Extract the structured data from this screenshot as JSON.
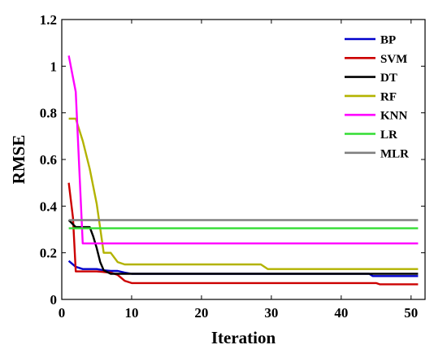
{
  "chart_data": {
    "type": "line",
    "title": "",
    "xlabel": "Iteration",
    "ylabel": "RMSE",
    "xlim": [
      0,
      52
    ],
    "ylim": [
      0,
      1.2
    ],
    "xticks": [
      "0",
      "10",
      "20",
      "30",
      "40",
      "50"
    ],
    "yticks": [
      "0",
      "0.2",
      "0.4",
      "0.6",
      "0.8",
      "1",
      "1.2"
    ],
    "grid": false,
    "legend_position": "top-right",
    "series": [
      {
        "name": "BP",
        "color": "#0000cc",
        "points": [
          [
            1,
            0.165
          ],
          [
            2,
            0.14
          ],
          [
            3,
            0.13
          ],
          [
            4,
            0.13
          ],
          [
            5,
            0.13
          ],
          [
            6,
            0.125
          ],
          [
            7,
            0.122
          ],
          [
            8,
            0.122
          ],
          [
            9,
            0.115
          ],
          [
            10,
            0.11
          ],
          [
            20,
            0.11
          ],
          [
            30,
            0.11
          ],
          [
            44,
            0.11
          ],
          [
            44.5,
            0.1
          ],
          [
            51,
            0.1
          ]
        ]
      },
      {
        "name": "SVM",
        "color": "#cc0000",
        "points": [
          [
            1,
            0.5
          ],
          [
            1.6,
            0.35
          ],
          [
            2,
            0.12
          ],
          [
            3,
            0.12
          ],
          [
            5,
            0.12
          ],
          [
            7,
            0.115
          ],
          [
            8,
            0.105
          ],
          [
            9,
            0.08
          ],
          [
            10,
            0.07
          ],
          [
            20,
            0.07
          ],
          [
            30,
            0.07
          ],
          [
            45,
            0.07
          ],
          [
            45.5,
            0.065
          ],
          [
            51,
            0.065
          ]
        ]
      },
      {
        "name": "DT",
        "color": "#000000",
        "points": [
          [
            1,
            0.34
          ],
          [
            2,
            0.31
          ],
          [
            3,
            0.31
          ],
          [
            4,
            0.31
          ],
          [
            4.5,
            0.27
          ],
          [
            5,
            0.22
          ],
          [
            5.5,
            0.16
          ],
          [
            6,
            0.125
          ],
          [
            7,
            0.11
          ],
          [
            8,
            0.11
          ],
          [
            20,
            0.11
          ],
          [
            30,
            0.11
          ],
          [
            40,
            0.11
          ],
          [
            51,
            0.11
          ]
        ]
      },
      {
        "name": "RF",
        "color": "#b3b300",
        "points": [
          [
            1,
            0.775
          ],
          [
            2,
            0.775
          ],
          [
            3,
            0.68
          ],
          [
            4,
            0.56
          ],
          [
            5,
            0.41
          ],
          [
            6,
            0.2
          ],
          [
            7,
            0.2
          ],
          [
            8,
            0.16
          ],
          [
            9,
            0.15
          ],
          [
            20,
            0.15
          ],
          [
            28.5,
            0.15
          ],
          [
            29.5,
            0.13
          ],
          [
            40,
            0.13
          ],
          [
            51,
            0.13
          ]
        ]
      },
      {
        "name": "KNN",
        "color": "#ff00ff",
        "points": [
          [
            1,
            1.045
          ],
          [
            2,
            0.89
          ],
          [
            3,
            0.24
          ],
          [
            10,
            0.24
          ],
          [
            20,
            0.24
          ],
          [
            30,
            0.24
          ],
          [
            40,
            0.24
          ],
          [
            51,
            0.24
          ]
        ]
      },
      {
        "name": "LR",
        "color": "#33dd33",
        "points": [
          [
            1,
            0.305
          ],
          [
            51,
            0.305
          ]
        ]
      },
      {
        "name": "MLR",
        "color": "#808080",
        "points": [
          [
            1,
            0.34
          ],
          [
            51,
            0.34
          ]
        ]
      }
    ]
  }
}
